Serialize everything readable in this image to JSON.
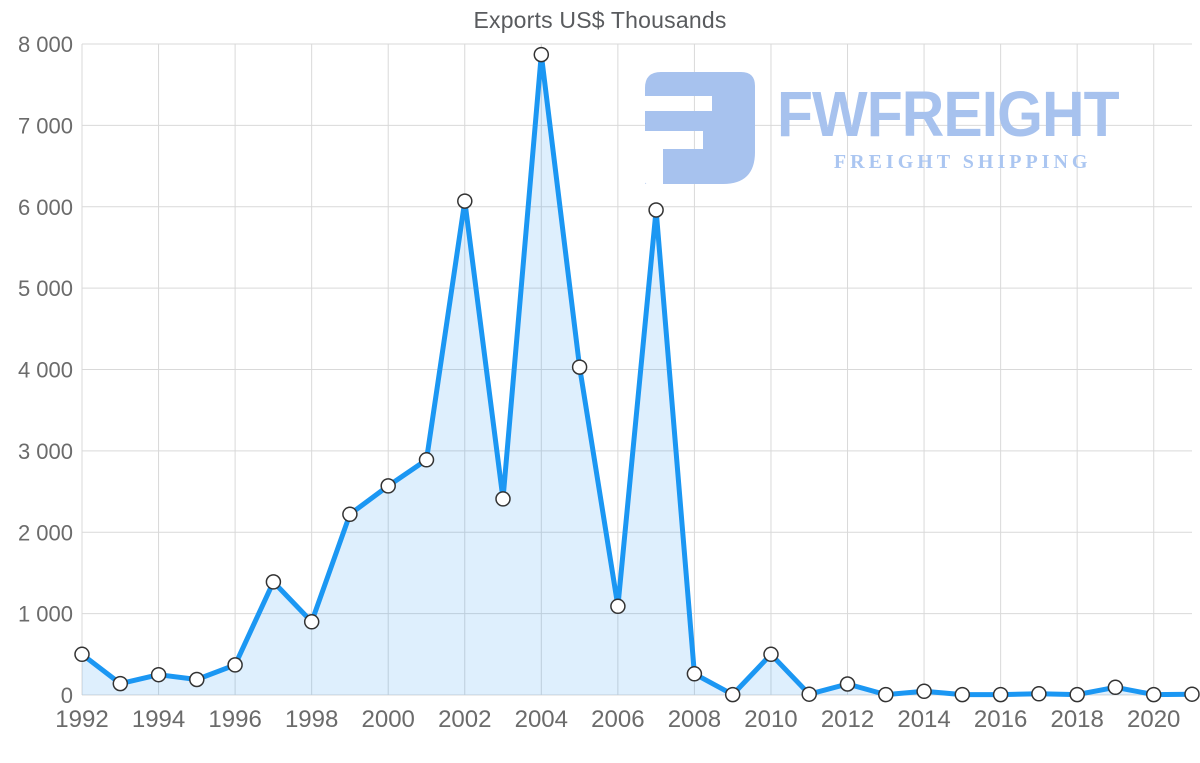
{
  "chart_data": {
    "type": "area",
    "title": "Exports US$ Thousands",
    "xlabel": "",
    "ylabel": "",
    "x": [
      1992,
      1993,
      1994,
      1995,
      1996,
      1997,
      1998,
      1999,
      2000,
      2001,
      2002,
      2003,
      2004,
      2005,
      2006,
      2007,
      2008,
      2009,
      2010,
      2011,
      2012,
      2013,
      2014,
      2015,
      2016,
      2017,
      2018,
      2019,
      2020,
      2021
    ],
    "values": [
      500,
      140,
      250,
      190,
      370,
      1390,
      900,
      2220,
      2570,
      2890,
      6070,
      2410,
      7870,
      4030,
      1090,
      5960,
      260,
      5,
      500,
      10,
      135,
      5,
      45,
      5,
      5,
      15,
      5,
      95,
      5,
      10
    ],
    "ylim": [
      0,
      8000
    ],
    "yticks": [
      0,
      1000,
      2000,
      3000,
      4000,
      5000,
      6000,
      7000,
      8000
    ],
    "ytick_labels": [
      "0",
      "1 000",
      "2 000",
      "3 000",
      "4 000",
      "5 000",
      "6 000",
      "7 000",
      "8 000"
    ],
    "xticks": [
      1992,
      1994,
      1996,
      1998,
      2000,
      2002,
      2004,
      2006,
      2008,
      2010,
      2012,
      2014,
      2016,
      2018,
      2020
    ],
    "xtick_labels": [
      "1992",
      "1994",
      "1996",
      "1998",
      "2000",
      "2002",
      "2004",
      "2006",
      "2008",
      "2010",
      "2012",
      "2014",
      "2016",
      "2018",
      "2020"
    ],
    "grid": "on",
    "legend": "none",
    "line_color": "#1b97f3",
    "fill_color": "#2196f3",
    "fill_opacity": 0.15,
    "marker_fill": "#ffffff",
    "marker_stroke": "#333333"
  },
  "watermark": {
    "brand": "FWFREIGHT",
    "tagline": "FREIGHT SHIPPING",
    "brand_color": "#a7c2ee",
    "tagline_color": "#abc6f1",
    "icon": "fwfreight-logo-icon"
  }
}
